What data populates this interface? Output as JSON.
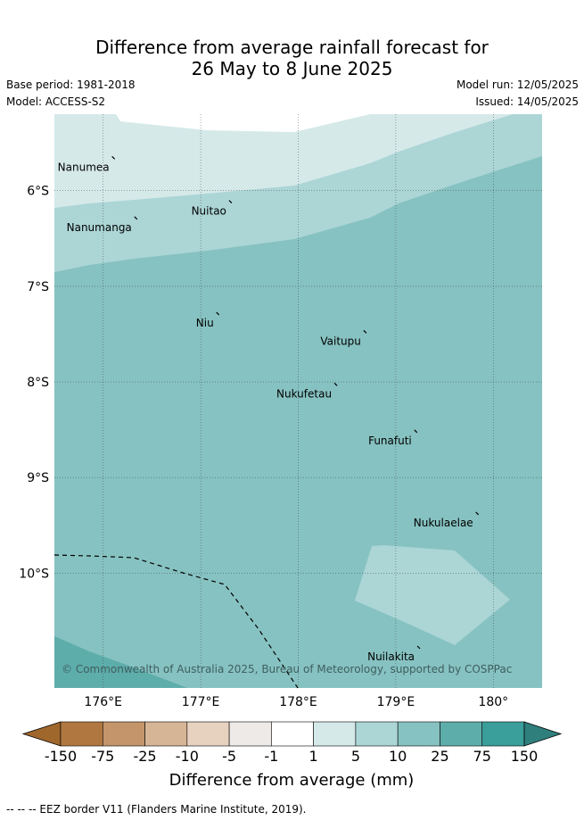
{
  "title": {
    "line1": "Difference from average rainfall forecast for",
    "line2": "26 May to 8 June 2025"
  },
  "meta": {
    "base_period": "Base period: 1981-2018",
    "model": "Model: ACCESS-S2",
    "model_run": "Model run: 12/05/2025",
    "issued": "Issued: 14/05/2025"
  },
  "map": {
    "lon_range": [
      175.5,
      180.5
    ],
    "lat_range": [
      -11.2,
      -5.2
    ],
    "lon_ticks": [
      {
        "value": 176,
        "label": "176°E"
      },
      {
        "value": 177,
        "label": "177°E"
      },
      {
        "value": 178,
        "label": "178°E"
      },
      {
        "value": 179,
        "label": "179°E"
      },
      {
        "value": 180,
        "label": "180°"
      }
    ],
    "lat_ticks": [
      {
        "value": -6,
        "label": "6°S"
      },
      {
        "value": -7,
        "label": "7°S"
      },
      {
        "value": -8,
        "label": "8°S"
      },
      {
        "value": -9,
        "label": "9°S"
      },
      {
        "value": -10,
        "label": "10°S"
      }
    ],
    "places": [
      {
        "name": "Nanumea",
        "lon": 176.1,
        "lat": -5.66
      },
      {
        "name": "Nuitao",
        "lon": 177.3,
        "lat": -6.12
      },
      {
        "name": "Nanumanga",
        "lon": 176.33,
        "lat": -6.29
      },
      {
        "name": "Niu",
        "lon": 177.17,
        "lat": -7.29
      },
      {
        "name": "Vaitupu",
        "lon": 178.68,
        "lat": -7.48
      },
      {
        "name": "Nukufetau",
        "lon": 178.38,
        "lat": -8.03
      },
      {
        "name": "Funafuti",
        "lon": 179.2,
        "lat": -8.52
      },
      {
        "name": "Nukulaelae",
        "lon": 179.83,
        "lat": -9.38
      },
      {
        "name": "Nuilakita",
        "lon": 179.23,
        "lat": -10.78
      }
    ],
    "copyright": "© Commonwealth of Australia 2025, Bureau of Meteorology, supported by COSPPac"
  },
  "colorbar": {
    "title": "Difference from average (mm)",
    "levels": [
      "-150",
      "-75",
      "-25",
      "-10",
      "-5",
      "-1",
      "1",
      "5",
      "10",
      "25",
      "75",
      "150"
    ],
    "colors": [
      "#a0672c",
      "#b07840",
      "#c4956a",
      "#d6b596",
      "#e6d2bf",
      "#eeeae7",
      "#ffffff",
      "#d5e9e9",
      "#acd5d6",
      "#86c2c1",
      "#5dadab",
      "#3a9e9b",
      "#2f7f7d"
    ]
  },
  "footer": "--  --  -- EEZ border V11 (Flanders Marine Institute, 2019)."
}
